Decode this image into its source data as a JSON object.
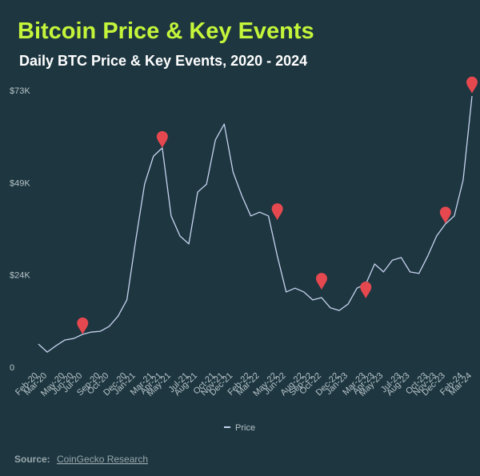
{
  "chart_data": {
    "type": "line",
    "title": "Bitcoin Price & Key Events",
    "subtitle": "Daily BTC Price & Key Events, 2020 - 2024",
    "x": [
      "Feb-20",
      "Mar-20",
      "Apr-20",
      "May-20",
      "Jun-20",
      "Jul-20",
      "Aug-20",
      "Sep-20",
      "Oct-20",
      "Nov-20",
      "Dec-20",
      "Jan-21",
      "Feb-21",
      "Mar-21",
      "Apr-21",
      "May-21",
      "Jun-21",
      "Jul-21",
      "Aug-21",
      "Sep-21",
      "Oct-21",
      "Nov-21",
      "Dec-21",
      "Jan-22",
      "Feb-22",
      "Mar-22",
      "Apr-22",
      "May-22",
      "Jun-22",
      "Jul-22",
      "Aug-22",
      "Sep-22",
      "Oct-22",
      "Nov-22",
      "Dec-22",
      "Jan-23",
      "Feb-23",
      "Mar-23",
      "Apr-23",
      "May-23",
      "Jun-23",
      "Jul-23",
      "Aug-23",
      "Sep-23",
      "Oct-23",
      "Nov-23",
      "Dec-23",
      "Jan-24",
      "Feb-24",
      "Mar-24"
    ],
    "series": [
      {
        "name": "Price",
        "color": "#c9d4f0",
        "values": [
          6100,
          4000,
          5700,
          7200,
          7600,
          8700,
          9300,
          9500,
          10800,
          13500,
          17800,
          33600,
          48400,
          55800,
          58000,
          40000,
          34700,
          32600,
          46300,
          48400,
          60100,
          64300,
          51600,
          45300,
          40000,
          41000,
          40000,
          29400,
          19900,
          20900,
          19900,
          17800,
          18400,
          15700,
          15000,
          16700,
          20900,
          22000,
          27300,
          25200,
          28300,
          29000,
          25200,
          24800,
          29400,
          34700,
          37900,
          40000,
          49500,
          71700
        ]
      }
    ],
    "events": {
      "color": "#e5484f",
      "x": [
        "Jul-20",
        "Apr-21",
        "May-22",
        "Oct-22",
        "Mar-23",
        "Dec-23",
        "Mar-24"
      ],
      "values": [
        8700,
        58000,
        38900,
        20500,
        18200,
        38000,
        72400
      ]
    },
    "ylim": [
      0,
      73200
    ],
    "yticks": [
      0,
      {
        "value": 24400,
        "label": "$24K"
      },
      {
        "value": 48800,
        "label": "$49K"
      },
      {
        "value": 73200,
        "label": "$73K"
      }
    ],
    "xticks": [
      "Feb-20",
      "Mar-20",
      "May-20",
      "Jun-20",
      "Jul-20",
      "Sep-20",
      "Oct-20",
      "Dec-20",
      "Jan-21",
      "Mar-21",
      "Apr-21",
      "May-21",
      "Jul-21",
      "Aug-21",
      "Oct-21",
      "Nov-21",
      "Dec-21",
      "Feb-22",
      "Mar-22",
      "May-22",
      "Jun-22",
      "Aug-22",
      "Sep-22",
      "Oct-22",
      "Dec-22",
      "Jan-23",
      "Mar-23",
      "Apr-23",
      "May-23",
      "Jul-23",
      "Aug-23",
      "Oct-23",
      "Nov-23",
      "Dec-23",
      "Feb-24",
      "Mar-24"
    ],
    "grid": false,
    "source_label": "Source:",
    "source": "CoinGecko Research"
  }
}
